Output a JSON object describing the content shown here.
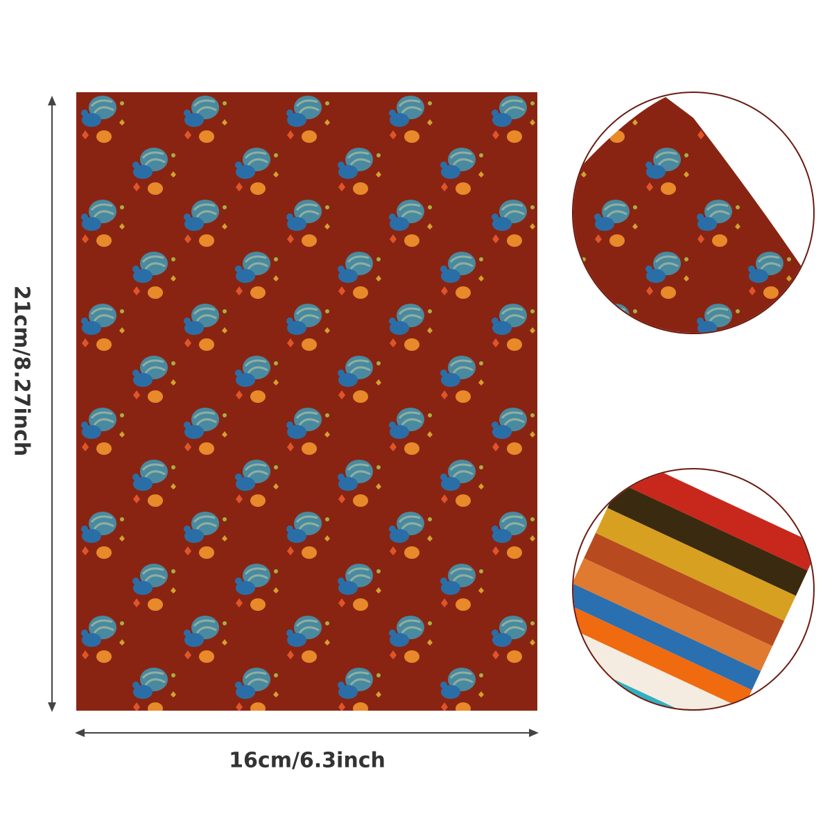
{
  "dimensions": {
    "height": "21cm/8.27inch",
    "width": "16cm/6.3inch"
  }
}
